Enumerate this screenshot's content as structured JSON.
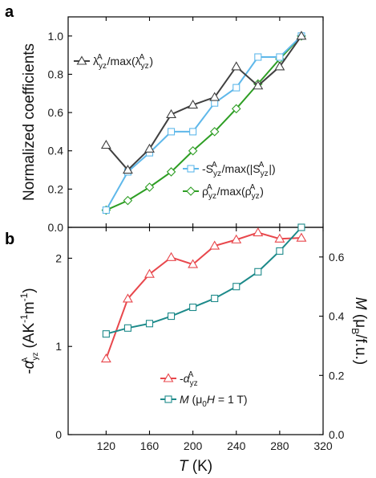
{
  "panel_labels": {
    "a": "a",
    "b": "b"
  },
  "chart_data": [
    {
      "type": "line",
      "panel": "a",
      "x": [
        120,
        140,
        160,
        180,
        200,
        220,
        240,
        260,
        280,
        300
      ],
      "ylabel": "Normalized coefficients",
      "xlim": [
        85,
        320
      ],
      "ylim": [
        0,
        1.1
      ],
      "xticks": [
        120,
        160,
        200,
        240,
        280,
        320
      ],
      "yticks": [
        0.0,
        0.2,
        0.4,
        0.6,
        0.8,
        1.0
      ],
      "ytick_labels": [
        "0.0",
        "0.2",
        "0.4",
        "0.6",
        "0.8",
        "1.0"
      ],
      "legend": {
        "lambda": {
          "main": "λ",
          "sub": "yz",
          "sup": "A",
          "rest1": "/max(λ",
          "end": ")"
        },
        "s": {
          "main": "-S",
          "sub": "yz",
          "sup": "A",
          "rest1": "/max(|S",
          "end": "|)"
        },
        "rho": {
          "main": "ρ",
          "sub": "yz",
          "sup": "A",
          "rest1": "/max(ρ",
          "end": ")"
        }
      },
      "series": [
        {
          "key": "lambda",
          "color": "#404040",
          "marker": "triangle",
          "values": [
            0.43,
            0.3,
            0.41,
            0.59,
            0.64,
            0.68,
            0.84,
            0.74,
            0.84,
            1.0
          ]
        },
        {
          "key": "s",
          "color": "#5fb8ea",
          "marker": "square",
          "values": [
            0.09,
            0.29,
            0.39,
            0.5,
            0.5,
            0.65,
            0.73,
            0.89,
            0.89,
            1.0
          ]
        },
        {
          "key": "rho",
          "color": "#2e9e24",
          "marker": "diamond",
          "values": [
            0.09,
            0.14,
            0.21,
            0.29,
            0.4,
            0.5,
            0.62,
            0.75,
            0.88,
            1.0
          ]
        }
      ]
    },
    {
      "type": "line",
      "panel": "b",
      "x": [
        120,
        140,
        160,
        180,
        200,
        220,
        240,
        260,
        280,
        300
      ],
      "xlabel_italic": "T",
      "xlabel_unit": " (K)",
      "xlim": [
        85,
        320
      ],
      "xticks": [
        120,
        160,
        200,
        240,
        280,
        320
      ],
      "left_axis": {
        "label": {
          "pre": "-",
          "alpha": "α",
          "sub": "yz",
          "sup": "A",
          "unit": " (AK",
          "e1": "-1",
          "mid": "m",
          "e2": "-1",
          "end": ")"
        },
        "ylim": [
          0,
          2.35
        ],
        "yticks": [
          0,
          1,
          2
        ],
        "ytick_labels": [
          "0",
          "1",
          "2"
        ]
      },
      "right_axis": {
        "label": {
          "m": "M",
          "unit": " (μ",
          "b": "B",
          "end": "/f.u.)"
        },
        "ylim": [
          0,
          0.7
        ],
        "yticks": [
          0.0,
          0.2,
          0.4,
          0.6
        ],
        "ytick_labels": [
          "0.0",
          "0.2",
          "0.4",
          "0.6"
        ]
      },
      "legend": {
        "alpha": {
          "pre": "-",
          "alpha": "α",
          "sub": "yz",
          "sup": "A"
        },
        "m": {
          "m": "M",
          "rest": " (μ",
          "sub0": "0",
          "h": "H",
          "end": " = 1 T)"
        }
      },
      "series": [
        {
          "key": "alpha",
          "axis": "left",
          "color": "#e8474c",
          "marker": "triangle",
          "values": [
            0.86,
            1.54,
            1.82,
            2.01,
            1.93,
            2.14,
            2.21,
            2.29,
            2.22,
            2.23
          ]
        },
        {
          "key": "m",
          "axis": "right",
          "color": "#1d8a8a",
          "marker": "square",
          "values": [
            0.34,
            0.36,
            0.375,
            0.4,
            0.43,
            0.46,
            0.5,
            0.55,
            0.62,
            0.7
          ]
        }
      ]
    }
  ]
}
